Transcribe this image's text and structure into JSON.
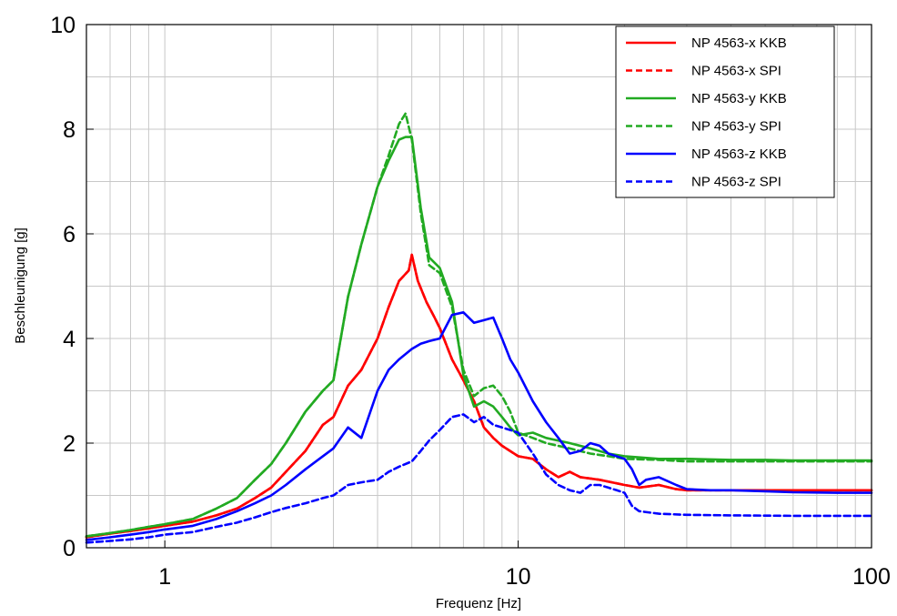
{
  "chart_data": {
    "type": "line",
    "title": "",
    "xlabel": "Frequenz [Hz]",
    "ylabel": "Beschleunigung [g]",
    "xscale": "log",
    "xlim": [
      0.6,
      100
    ],
    "ylim": [
      0,
      10
    ],
    "grid": true,
    "legend_position": "top-right",
    "x_ticks": [
      {
        "value": 1,
        "label": "1"
      },
      {
        "value": 10,
        "label": "10"
      },
      {
        "value": 100,
        "label": "100"
      }
    ],
    "y_ticks": [
      {
        "value": 0,
        "label": "0"
      },
      {
        "value": 2,
        "label": "2"
      },
      {
        "value": 4,
        "label": "4"
      },
      {
        "value": 6,
        "label": "6"
      },
      {
        "value": 8,
        "label": "8"
      },
      {
        "value": 10,
        "label": "10"
      }
    ],
    "series": [
      {
        "name": "NP 4563-x KKB",
        "color": "#ff0000",
        "dash": "solid",
        "x": [
          0.6,
          0.7,
          0.8,
          0.9,
          1.0,
          1.2,
          1.4,
          1.6,
          1.8,
          2.0,
          2.2,
          2.5,
          2.8,
          3.0,
          3.3,
          3.6,
          4.0,
          4.3,
          4.6,
          4.9,
          5.0,
          5.2,
          5.5,
          5.8,
          6.0,
          6.5,
          7.0,
          7.5,
          8.0,
          8.5,
          9.0,
          10,
          11,
          12,
          13,
          14,
          15,
          17,
          20,
          22,
          25,
          28,
          30,
          35,
          40,
          50,
          60,
          80,
          100
        ],
        "y": [
          0.2,
          0.27,
          0.32,
          0.37,
          0.42,
          0.5,
          0.62,
          0.75,
          0.95,
          1.15,
          1.45,
          1.85,
          2.35,
          2.5,
          3.1,
          3.4,
          4.0,
          4.6,
          5.1,
          5.3,
          5.6,
          5.1,
          4.7,
          4.4,
          4.2,
          3.6,
          3.2,
          2.8,
          2.3,
          2.1,
          1.95,
          1.75,
          1.7,
          1.5,
          1.35,
          1.45,
          1.35,
          1.3,
          1.2,
          1.15,
          1.2,
          1.12,
          1.1,
          1.1,
          1.1,
          1.1,
          1.1,
          1.1,
          1.1
        ]
      },
      {
        "name": "NP 4563-x SPI",
        "color": "#ff0000",
        "dash": "dashed",
        "x": [
          0.6,
          0.7,
          0.8,
          0.9,
          1.0,
          1.2,
          1.4,
          1.6,
          1.8,
          2.0,
          2.2,
          2.5,
          2.8,
          3.0,
          3.3,
          3.6,
          4.0,
          4.3,
          4.6,
          4.9,
          5.0,
          5.2,
          5.5,
          5.8,
          6.0,
          6.5,
          7.0,
          7.5,
          8.0,
          8.5,
          9.0,
          10,
          11,
          12,
          13,
          14,
          15,
          17,
          20,
          22,
          25,
          28,
          30,
          35,
          40,
          50,
          60,
          80,
          100
        ],
        "y": [
          0.2,
          0.27,
          0.32,
          0.37,
          0.42,
          0.5,
          0.62,
          0.75,
          0.95,
          1.15,
          1.45,
          1.85,
          2.35,
          2.5,
          3.1,
          3.4,
          4.0,
          4.6,
          5.1,
          5.3,
          5.6,
          5.1,
          4.7,
          4.4,
          4.2,
          3.6,
          3.2,
          2.8,
          2.3,
          2.1,
          1.95,
          1.75,
          1.7,
          1.5,
          1.35,
          1.45,
          1.35,
          1.3,
          1.2,
          1.15,
          1.2,
          1.12,
          1.1,
          1.1,
          1.1,
          1.1,
          1.1,
          1.1,
          1.1
        ]
      },
      {
        "name": "NP 4563-y KKB",
        "color": "#22aa22",
        "dash": "solid",
        "x": [
          0.6,
          0.7,
          0.8,
          0.9,
          1.0,
          1.2,
          1.4,
          1.6,
          1.8,
          2.0,
          2.2,
          2.5,
          2.8,
          3.0,
          3.3,
          3.6,
          4.0,
          4.3,
          4.6,
          4.8,
          5.0,
          5.3,
          5.6,
          6.0,
          6.5,
          7.0,
          7.5,
          8.0,
          8.5,
          9.0,
          9.5,
          10,
          11,
          12,
          14,
          16,
          18,
          20,
          25,
          30,
          40,
          50,
          60,
          80,
          100
        ],
        "y": [
          0.22,
          0.28,
          0.34,
          0.4,
          0.45,
          0.55,
          0.75,
          0.95,
          1.3,
          1.6,
          2.0,
          2.6,
          3.0,
          3.2,
          4.8,
          5.8,
          6.9,
          7.4,
          7.8,
          7.85,
          7.85,
          6.5,
          5.55,
          5.35,
          4.7,
          3.3,
          2.7,
          2.8,
          2.7,
          2.5,
          2.3,
          2.15,
          2.2,
          2.1,
          2.0,
          1.9,
          1.8,
          1.75,
          1.7,
          1.7,
          1.68,
          1.68,
          1.67,
          1.67,
          1.67
        ]
      },
      {
        "name": "NP 4563-y SPI",
        "color": "#22aa22",
        "dash": "dashed",
        "x": [
          0.6,
          0.7,
          0.8,
          0.9,
          1.0,
          1.2,
          1.4,
          1.6,
          1.8,
          2.0,
          2.2,
          2.5,
          2.8,
          3.0,
          3.3,
          3.6,
          4.0,
          4.3,
          4.6,
          4.8,
          5.0,
          5.3,
          5.6,
          6.0,
          6.5,
          7.0,
          7.5,
          8.0,
          8.5,
          9.0,
          9.5,
          10,
          11,
          12,
          14,
          16,
          18,
          20,
          25,
          30,
          40,
          50,
          60,
          80,
          100
        ],
        "y": [
          0.22,
          0.28,
          0.34,
          0.4,
          0.45,
          0.55,
          0.75,
          0.95,
          1.3,
          1.6,
          2.0,
          2.6,
          3.0,
          3.2,
          4.8,
          5.8,
          6.9,
          7.5,
          8.1,
          8.3,
          7.8,
          6.4,
          5.4,
          5.25,
          4.6,
          3.4,
          2.9,
          3.05,
          3.1,
          2.9,
          2.6,
          2.2,
          2.1,
          2.0,
          1.9,
          1.8,
          1.75,
          1.7,
          1.68,
          1.65,
          1.65,
          1.65,
          1.65,
          1.65,
          1.65
        ]
      },
      {
        "name": "NP 4563-z KKB",
        "color": "#0000ff",
        "dash": "solid",
        "x": [
          0.6,
          0.7,
          0.8,
          0.9,
          1.0,
          1.2,
          1.4,
          1.6,
          1.8,
          2.0,
          2.2,
          2.5,
          2.8,
          3.0,
          3.3,
          3.6,
          4.0,
          4.3,
          4.6,
          5.0,
          5.3,
          5.6,
          6.0,
          6.5,
          7.0,
          7.5,
          8.0,
          8.5,
          9.0,
          9.5,
          10,
          11,
          12,
          13,
          14,
          15,
          16,
          17,
          18,
          20,
          21,
          22,
          23,
          25,
          28,
          30,
          35,
          40,
          50,
          60,
          80,
          100
        ],
        "y": [
          0.15,
          0.2,
          0.25,
          0.3,
          0.35,
          0.42,
          0.55,
          0.7,
          0.85,
          1.0,
          1.2,
          1.5,
          1.75,
          1.9,
          2.3,
          2.1,
          3.0,
          3.4,
          3.6,
          3.8,
          3.9,
          3.95,
          4.0,
          4.45,
          4.5,
          4.3,
          4.35,
          4.4,
          4.0,
          3.6,
          3.35,
          2.8,
          2.4,
          2.1,
          1.8,
          1.85,
          2.0,
          1.95,
          1.8,
          1.7,
          1.5,
          1.2,
          1.3,
          1.35,
          1.2,
          1.12,
          1.1,
          1.1,
          1.08,
          1.06,
          1.05,
          1.05
        ]
      },
      {
        "name": "NP 4563-z SPI",
        "color": "#0000ff",
        "dash": "dashed",
        "x": [
          0.6,
          0.7,
          0.8,
          0.9,
          1.0,
          1.2,
          1.4,
          1.6,
          1.8,
          2.0,
          2.2,
          2.5,
          2.8,
          3.0,
          3.3,
          3.6,
          4.0,
          4.3,
          4.6,
          5.0,
          5.3,
          5.6,
          6.0,
          6.5,
          7.0,
          7.5,
          8.0,
          8.5,
          9.0,
          9.5,
          10,
          11,
          12,
          13,
          14,
          15,
          16,
          17,
          18,
          19,
          20,
          21,
          22,
          25,
          30,
          40,
          60,
          80,
          100
        ],
        "y": [
          0.1,
          0.13,
          0.16,
          0.2,
          0.25,
          0.3,
          0.4,
          0.48,
          0.58,
          0.68,
          0.76,
          0.85,
          0.95,
          1.0,
          1.2,
          1.25,
          1.3,
          1.45,
          1.55,
          1.65,
          1.85,
          2.05,
          2.25,
          2.5,
          2.55,
          2.4,
          2.5,
          2.35,
          2.3,
          2.25,
          2.2,
          1.8,
          1.4,
          1.2,
          1.1,
          1.05,
          1.2,
          1.2,
          1.15,
          1.1,
          1.05,
          0.8,
          0.7,
          0.65,
          0.63,
          0.62,
          0.61,
          0.61,
          0.61
        ]
      }
    ]
  }
}
